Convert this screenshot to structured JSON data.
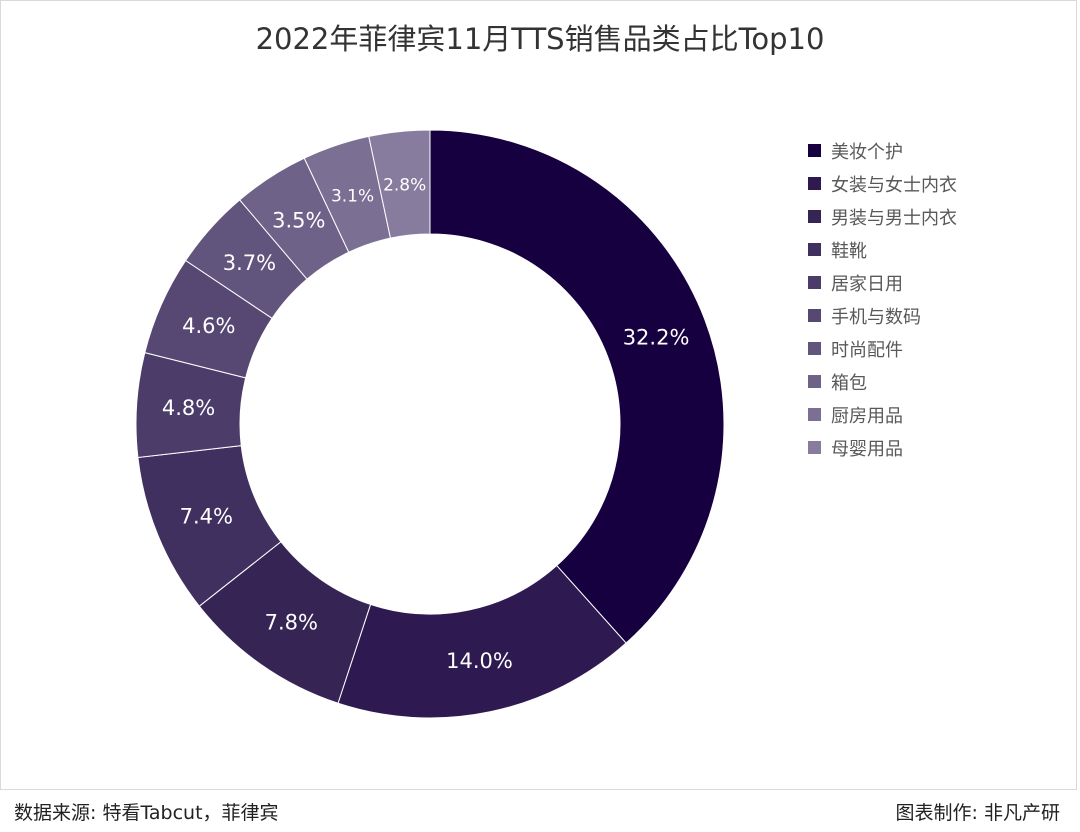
{
  "chart_data": {
    "type": "pie",
    "variant": "donut",
    "title": "2022年菲律宾11月TTS销售品类占比Top10",
    "categories": [
      "美妆个护",
      "女装与女士内衣",
      "男装与男士内衣",
      "鞋靴",
      "居家日用",
      "手机与数码",
      "时尚配件",
      "箱包",
      "厨房用品",
      "母婴用品"
    ],
    "values": [
      32.2,
      14.0,
      7.8,
      7.4,
      4.8,
      4.6,
      3.7,
      3.5,
      3.1,
      2.8
    ],
    "data_labels": [
      "32.2%",
      "14.0%",
      "7.8%",
      "7.4%",
      "4.8%",
      "4.6%",
      "3.7%",
      "3.5%",
      "3.1%",
      "2.8%"
    ],
    "colors": [
      "#16003f",
      "#2e1a50",
      "#362455",
      "#40305f",
      "#4b3c69",
      "#564873",
      "#62557d",
      "#6e6288",
      "#7b6f93",
      "#887c9e"
    ],
    "legend_position": "right"
  },
  "footer": {
    "source": "数据来源: 特看Tabcut，菲律宾",
    "credit": "图表制作: 非凡产研"
  }
}
